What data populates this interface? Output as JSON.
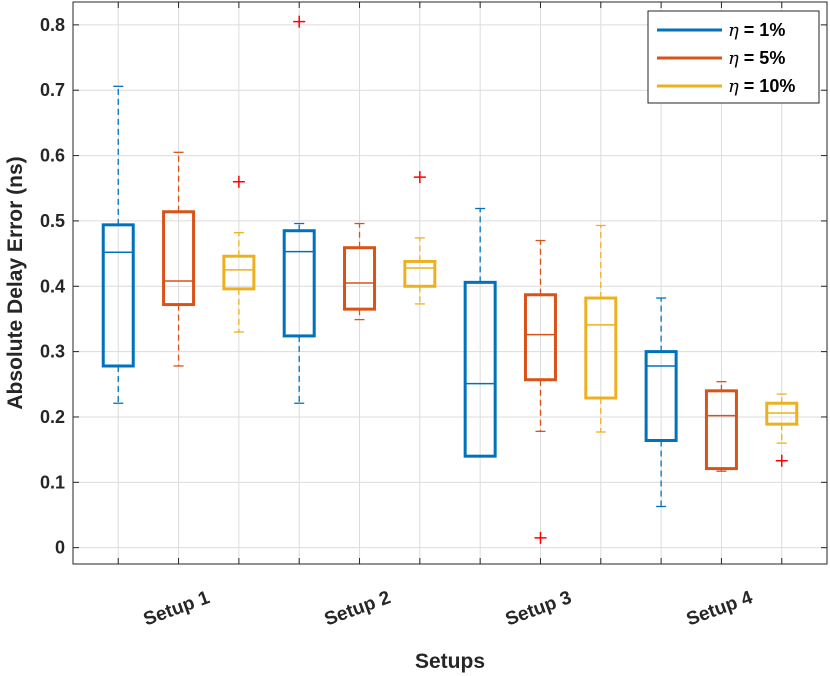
{
  "chart_data": {
    "type": "box",
    "xlabel": "Setups",
    "ylabel": "Absolute Delay Error (ns)",
    "categories": [
      "Setup 1",
      "Setup 2",
      "Setup 3",
      "Setup 4"
    ],
    "ylim": [
      -0.025,
      0.835
    ],
    "yticks": [
      0,
      0.1,
      0.2,
      0.3,
      0.4,
      0.5,
      0.6,
      0.7,
      0.8
    ],
    "ytick_labels": [
      "0",
      "0.1",
      "0.2",
      "0.3",
      "0.4",
      "0.5",
      "0.6",
      "0.7",
      "0.8"
    ],
    "grid": true,
    "legend_position": "top-right",
    "series": [
      {
        "name": "η = 1%",
        "name_symbol": "η",
        "name_rest": " = 1%",
        "color": "#0072BD",
        "boxes": [
          {
            "whisker_low": 0.221,
            "q1": 0.278,
            "median": 0.452,
            "q3": 0.494,
            "whisker_high": 0.706,
            "outliers": []
          },
          {
            "whisker_low": 0.221,
            "q1": 0.324,
            "median": 0.453,
            "q3": 0.485,
            "whisker_high": 0.496,
            "outliers": [
              0.805
            ]
          },
          {
            "whisker_low": 0.14,
            "q1": 0.14,
            "median": 0.251,
            "q3": 0.406,
            "whisker_high": 0.519,
            "outliers": []
          },
          {
            "whisker_low": 0.063,
            "q1": 0.164,
            "median": 0.278,
            "q3": 0.3,
            "whisker_high": 0.382,
            "outliers": []
          }
        ]
      },
      {
        "name": "η = 5%",
        "name_symbol": "η",
        "name_rest": " = 5%",
        "color": "#D95319",
        "boxes": [
          {
            "whisker_low": 0.278,
            "q1": 0.372,
            "median": 0.408,
            "q3": 0.514,
            "whisker_high": 0.605,
            "outliers": []
          },
          {
            "whisker_low": 0.349,
            "q1": 0.365,
            "median": 0.405,
            "q3": 0.459,
            "whisker_high": 0.496,
            "outliers": []
          },
          {
            "whisker_low": 0.178,
            "q1": 0.257,
            "median": 0.326,
            "q3": 0.387,
            "whisker_high": 0.47,
            "outliers": [
              0.015
            ]
          },
          {
            "whisker_low": 0.117,
            "q1": 0.121,
            "median": 0.202,
            "q3": 0.24,
            "whisker_high": 0.254,
            "outliers": []
          }
        ]
      },
      {
        "name": "η = 10%",
        "name_symbol": "η",
        "name_rest": " = 10%",
        "color": "#EDB120",
        "boxes": [
          {
            "whisker_low": 0.33,
            "q1": 0.396,
            "median": 0.425,
            "q3": 0.446,
            "whisker_high": 0.482,
            "outliers": [
              0.56
            ]
          },
          {
            "whisker_low": 0.373,
            "q1": 0.4,
            "median": 0.428,
            "q3": 0.438,
            "whisker_high": 0.474,
            "outliers": [
              0.567
            ]
          },
          {
            "whisker_low": 0.177,
            "q1": 0.229,
            "median": 0.341,
            "q3": 0.382,
            "whisker_high": 0.493,
            "outliers": []
          },
          {
            "whisker_low": 0.16,
            "q1": 0.189,
            "median": 0.206,
            "q3": 0.221,
            "whisker_high": 0.235,
            "outliers": [
              0.133
            ]
          }
        ]
      }
    ],
    "outlier_color": "#FF0000"
  }
}
